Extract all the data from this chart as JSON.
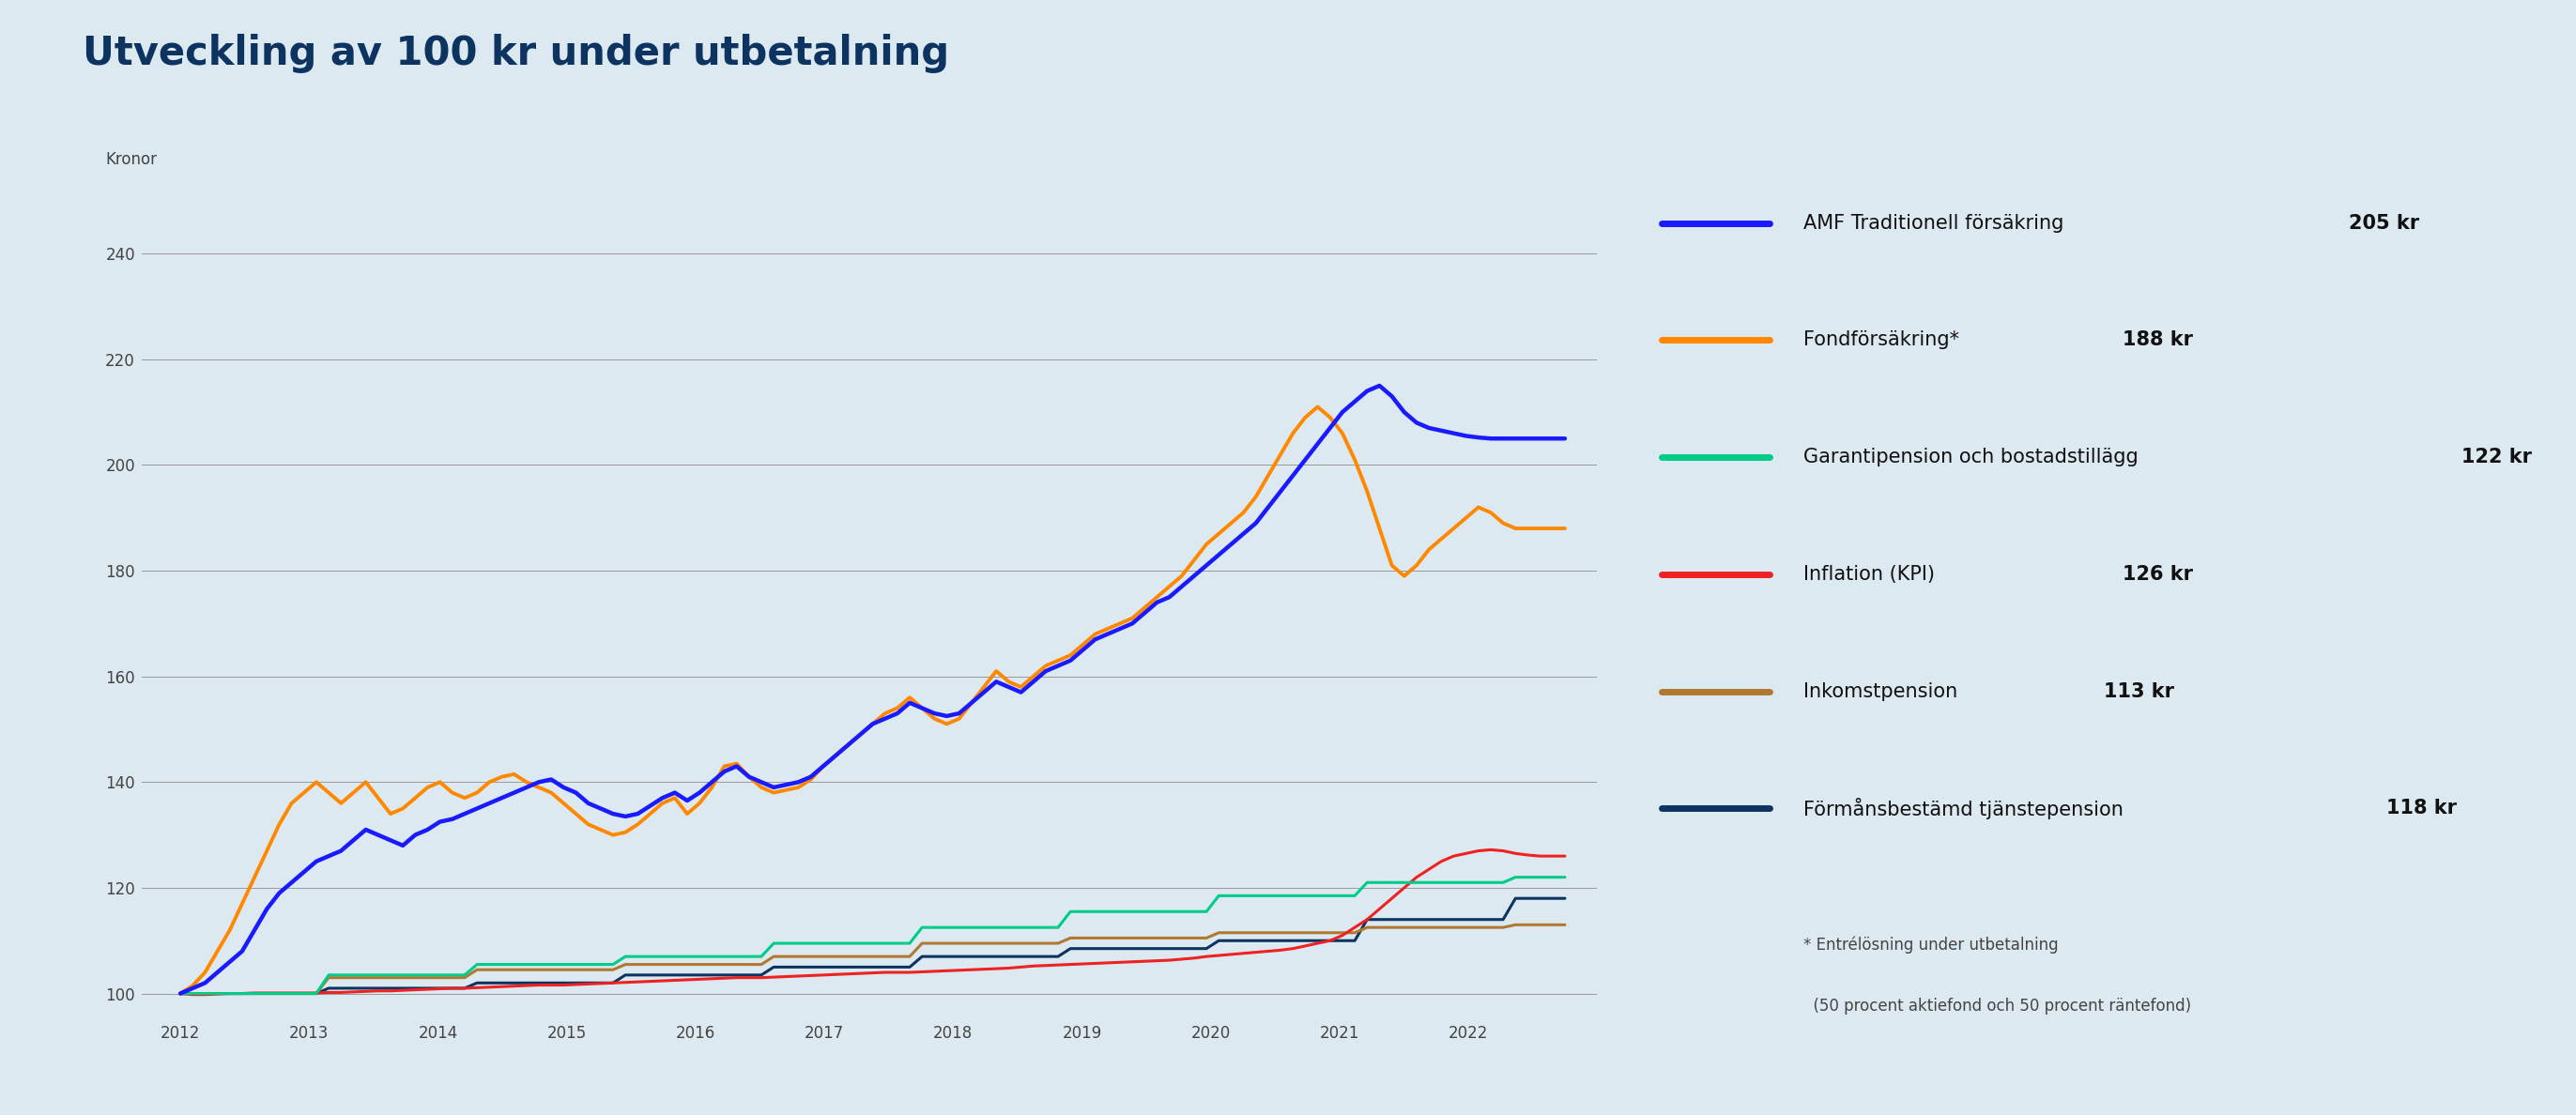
{
  "title": "Utveckling av 100 kr under utbetalning",
  "ylabel": "Kronor",
  "bg_color": "#dce9f0",
  "title_color": "#0d3461",
  "ylabel_color": "#444444",
  "tick_color": "#444444",
  "grid_color": "#999999",
  "ylim": [
    96,
    250
  ],
  "yticks": [
    100,
    120,
    140,
    160,
    180,
    200,
    220,
    240
  ],
  "series": [
    {
      "label": "AMF Traditionell försäkring",
      "value_label": "205 kr",
      "color": "#1a1aff",
      "linewidth": 3.2,
      "zorder": 6,
      "data": [
        100.0,
        101.0,
        102.0,
        104.0,
        106.0,
        108.0,
        112.0,
        116.0,
        119.0,
        121.0,
        123.0,
        125.0,
        126.0,
        127.0,
        129.0,
        131.0,
        130.0,
        129.0,
        128.0,
        130.0,
        131.0,
        132.5,
        133.0,
        134.0,
        135.0,
        136.0,
        137.0,
        138.0,
        139.0,
        140.0,
        140.5,
        139.0,
        138.0,
        136.0,
        135.0,
        134.0,
        133.5,
        134.0,
        135.5,
        137.0,
        138.0,
        136.5,
        138.0,
        140.0,
        142.0,
        143.0,
        141.0,
        140.0,
        139.0,
        139.5,
        140.0,
        141.0,
        143.0,
        145.0,
        147.0,
        149.0,
        151.0,
        152.0,
        153.0,
        155.0,
        154.0,
        153.0,
        152.5,
        153.0,
        155.0,
        157.0,
        159.0,
        158.0,
        157.0,
        159.0,
        161.0,
        162.0,
        163.0,
        165.0,
        167.0,
        168.0,
        169.0,
        170.0,
        172.0,
        174.0,
        175.0,
        177.0,
        179.0,
        181.0,
        183.0,
        185.0,
        187.0,
        189.0,
        192.0,
        195.0,
        198.0,
        201.0,
        204.0,
        207.0,
        210.0,
        212.0,
        214.0,
        215.0,
        213.0,
        210.0,
        208.0,
        207.0,
        206.5,
        206.0,
        205.5,
        205.2,
        205.0,
        205.0,
        205.0,
        205.0,
        205.0,
        205.0,
        205.0
      ]
    },
    {
      "label": "Fondförsäkring*",
      "value_label": "188 kr",
      "color": "#ff8800",
      "linewidth": 2.8,
      "zorder": 5,
      "data": [
        100.0,
        101.5,
        104.0,
        108.0,
        112.0,
        117.0,
        122.0,
        127.0,
        132.0,
        136.0,
        138.0,
        140.0,
        138.0,
        136.0,
        138.0,
        140.0,
        137.0,
        134.0,
        135.0,
        137.0,
        139.0,
        140.0,
        138.0,
        137.0,
        138.0,
        140.0,
        141.0,
        141.5,
        140.0,
        139.0,
        138.0,
        136.0,
        134.0,
        132.0,
        131.0,
        130.0,
        130.5,
        132.0,
        134.0,
        136.0,
        137.0,
        134.0,
        136.0,
        139.0,
        143.0,
        143.5,
        141.0,
        139.0,
        138.0,
        138.5,
        139.0,
        140.5,
        143.0,
        145.0,
        147.0,
        149.0,
        151.0,
        153.0,
        154.0,
        156.0,
        154.0,
        152.0,
        151.0,
        152.0,
        155.0,
        158.0,
        161.0,
        159.0,
        158.0,
        160.0,
        162.0,
        163.0,
        164.0,
        166.0,
        168.0,
        169.0,
        170.0,
        171.0,
        173.0,
        175.0,
        177.0,
        179.0,
        182.0,
        185.0,
        187.0,
        189.0,
        191.0,
        194.0,
        198.0,
        202.0,
        206.0,
        209.0,
        211.0,
        209.0,
        206.0,
        201.0,
        195.0,
        188.0,
        181.0,
        179.0,
        181.0,
        184.0,
        186.0,
        188.0,
        190.0,
        192.0,
        191.0,
        189.0,
        188.0,
        188.0,
        188.0,
        188.0,
        188.0
      ]
    },
    {
      "label": "Garantipension och bostadstillägg",
      "value_label": "122 kr",
      "color": "#00cc88",
      "linewidth": 2.2,
      "zorder": 4,
      "data": [
        100.0,
        100.0,
        100.0,
        100.0,
        100.0,
        100.0,
        100.0,
        100.0,
        100.0,
        100.0,
        100.0,
        100.0,
        103.5,
        103.5,
        103.5,
        103.5,
        103.5,
        103.5,
        103.5,
        103.5,
        103.5,
        103.5,
        103.5,
        103.5,
        105.5,
        105.5,
        105.5,
        105.5,
        105.5,
        105.5,
        105.5,
        105.5,
        105.5,
        105.5,
        105.5,
        105.5,
        107.0,
        107.0,
        107.0,
        107.0,
        107.0,
        107.0,
        107.0,
        107.0,
        107.0,
        107.0,
        107.0,
        107.0,
        109.5,
        109.5,
        109.5,
        109.5,
        109.5,
        109.5,
        109.5,
        109.5,
        109.5,
        109.5,
        109.5,
        109.5,
        112.5,
        112.5,
        112.5,
        112.5,
        112.5,
        112.5,
        112.5,
        112.5,
        112.5,
        112.5,
        112.5,
        112.5,
        115.5,
        115.5,
        115.5,
        115.5,
        115.5,
        115.5,
        115.5,
        115.5,
        115.5,
        115.5,
        115.5,
        115.5,
        118.5,
        118.5,
        118.5,
        118.5,
        118.5,
        118.5,
        118.5,
        118.5,
        118.5,
        118.5,
        118.5,
        118.5,
        121.0,
        121.0,
        121.0,
        121.0,
        121.0,
        121.0,
        121.0,
        121.0,
        121.0,
        121.0,
        121.0,
        121.0,
        122.0,
        122.0,
        122.0,
        122.0,
        122.0
      ]
    },
    {
      "label": "Inflation (KPI)",
      "value_label": "126 kr",
      "color": "#ee2222",
      "linewidth": 2.2,
      "zorder": 3,
      "data": [
        100.0,
        99.8,
        99.8,
        99.9,
        100.0,
        100.0,
        100.1,
        100.1,
        100.1,
        100.1,
        100.1,
        100.1,
        100.2,
        100.2,
        100.3,
        100.4,
        100.5,
        100.5,
        100.6,
        100.7,
        100.8,
        100.9,
        101.0,
        101.0,
        101.1,
        101.2,
        101.3,
        101.4,
        101.5,
        101.6,
        101.6,
        101.6,
        101.7,
        101.8,
        101.9,
        102.0,
        102.1,
        102.2,
        102.3,
        102.4,
        102.5,
        102.6,
        102.7,
        102.8,
        102.9,
        103.0,
        103.0,
        103.0,
        103.1,
        103.2,
        103.3,
        103.4,
        103.5,
        103.6,
        103.7,
        103.8,
        103.9,
        104.0,
        104.0,
        104.0,
        104.1,
        104.2,
        104.3,
        104.4,
        104.5,
        104.6,
        104.7,
        104.8,
        105.0,
        105.2,
        105.3,
        105.4,
        105.5,
        105.6,
        105.7,
        105.8,
        105.9,
        106.0,
        106.1,
        106.2,
        106.3,
        106.5,
        106.7,
        107.0,
        107.2,
        107.4,
        107.6,
        107.8,
        108.0,
        108.2,
        108.5,
        109.0,
        109.5,
        110.0,
        111.0,
        112.5,
        114.0,
        116.0,
        118.0,
        120.0,
        122.0,
        123.5,
        125.0,
        126.0,
        126.5,
        127.0,
        127.2,
        127.0,
        126.5,
        126.2,
        126.0,
        126.0,
        126.0
      ]
    },
    {
      "label": "Inkomstpension",
      "value_label": "113 kr",
      "color": "#b07830",
      "linewidth": 2.2,
      "zorder": 2,
      "data": [
        100.0,
        100.0,
        100.0,
        100.0,
        100.0,
        100.0,
        100.0,
        100.0,
        100.0,
        100.0,
        100.0,
        100.0,
        103.0,
        103.0,
        103.0,
        103.0,
        103.0,
        103.0,
        103.0,
        103.0,
        103.0,
        103.0,
        103.0,
        103.0,
        104.5,
        104.5,
        104.5,
        104.5,
        104.5,
        104.5,
        104.5,
        104.5,
        104.5,
        104.5,
        104.5,
        104.5,
        105.5,
        105.5,
        105.5,
        105.5,
        105.5,
        105.5,
        105.5,
        105.5,
        105.5,
        105.5,
        105.5,
        105.5,
        107.0,
        107.0,
        107.0,
        107.0,
        107.0,
        107.0,
        107.0,
        107.0,
        107.0,
        107.0,
        107.0,
        107.0,
        109.5,
        109.5,
        109.5,
        109.5,
        109.5,
        109.5,
        109.5,
        109.5,
        109.5,
        109.5,
        109.5,
        109.5,
        110.5,
        110.5,
        110.5,
        110.5,
        110.5,
        110.5,
        110.5,
        110.5,
        110.5,
        110.5,
        110.5,
        110.5,
        111.5,
        111.5,
        111.5,
        111.5,
        111.5,
        111.5,
        111.5,
        111.5,
        111.5,
        111.5,
        111.5,
        111.5,
        112.5,
        112.5,
        112.5,
        112.5,
        112.5,
        112.5,
        112.5,
        112.5,
        112.5,
        112.5,
        112.5,
        112.5,
        113.0,
        113.0,
        113.0,
        113.0,
        113.0
      ]
    },
    {
      "label": "Förmånsbestämd tjänstepension",
      "value_label": "118 kr",
      "color": "#0d3461",
      "linewidth": 2.2,
      "zorder": 1,
      "data": [
        100.0,
        100.0,
        100.0,
        100.0,
        100.0,
        100.0,
        100.0,
        100.0,
        100.0,
        100.0,
        100.0,
        100.0,
        101.0,
        101.0,
        101.0,
        101.0,
        101.0,
        101.0,
        101.0,
        101.0,
        101.0,
        101.0,
        101.0,
        101.0,
        102.0,
        102.0,
        102.0,
        102.0,
        102.0,
        102.0,
        102.0,
        102.0,
        102.0,
        102.0,
        102.0,
        102.0,
        103.5,
        103.5,
        103.5,
        103.5,
        103.5,
        103.5,
        103.5,
        103.5,
        103.5,
        103.5,
        103.5,
        103.5,
        105.0,
        105.0,
        105.0,
        105.0,
        105.0,
        105.0,
        105.0,
        105.0,
        105.0,
        105.0,
        105.0,
        105.0,
        107.0,
        107.0,
        107.0,
        107.0,
        107.0,
        107.0,
        107.0,
        107.0,
        107.0,
        107.0,
        107.0,
        107.0,
        108.5,
        108.5,
        108.5,
        108.5,
        108.5,
        108.5,
        108.5,
        108.5,
        108.5,
        108.5,
        108.5,
        108.5,
        110.0,
        110.0,
        110.0,
        110.0,
        110.0,
        110.0,
        110.0,
        110.0,
        110.0,
        110.0,
        110.0,
        110.0,
        114.0,
        114.0,
        114.0,
        114.0,
        114.0,
        114.0,
        114.0,
        114.0,
        114.0,
        114.0,
        114.0,
        114.0,
        118.0,
        118.0,
        118.0,
        118.0,
        118.0
      ]
    }
  ],
  "legend_items": [
    {
      "label": "AMF Traditionell försäkring",
      "value": "205 kr",
      "color": "#1a1aff"
    },
    {
      "label": "Fondförsäkring*",
      "value": "188 kr",
      "color": "#ff8800"
    },
    {
      "label": "Garantipension och bostadstillägg",
      "value": "122 kr",
      "color": "#00cc88"
    },
    {
      "label": "Inflation (KPI)",
      "value": "126 kr",
      "color": "#ee2222"
    },
    {
      "label": "Inkomstpension",
      "value": "113 kr",
      "color": "#b07830"
    },
    {
      "label": "Förmånsbestämd tjänstepension",
      "value": "118 kr",
      "color": "#0d3461"
    }
  ],
  "footnote_line1": "* Entrélösning under utbetalning",
  "footnote_line2": "  (50 procent aktiefond och 50 procent räntefond)"
}
